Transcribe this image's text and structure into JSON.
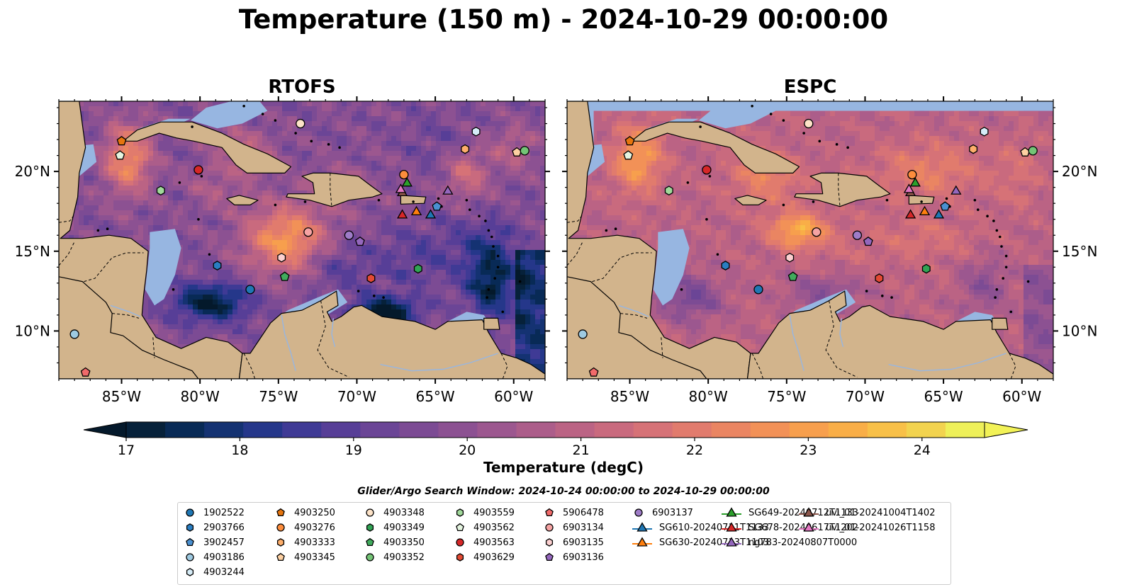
{
  "title": "Temperature (150 m) - 2024-10-29 00:00:00",
  "panels": [
    {
      "title": "RTOFS",
      "variant": "rtofs"
    },
    {
      "title": "ESPC",
      "variant": "espc"
    }
  ],
  "axes": {
    "lon_ticks": [
      "85°W",
      "80°W",
      "75°W",
      "70°W",
      "65°W",
      "60°W"
    ],
    "lat_ticks": [
      "20°N",
      "15°N",
      "10°N"
    ]
  },
  "colorbar": {
    "label": "Temperature (degC)",
    "ticks": [
      "17",
      "18",
      "19",
      "20",
      "21",
      "22",
      "23",
      "24"
    ],
    "colors": [
      "#06213a",
      "#082a56",
      "#143272",
      "#25378a",
      "#3f3a95",
      "#573e97",
      "#6b4596",
      "#7c4b94",
      "#8c5192",
      "#9c578f",
      "#ac5d8a",
      "#bb6384",
      "#c96a7e",
      "#d67277",
      "#e17b6d",
      "#ea8562",
      "#f29157",
      "#f79f4d",
      "#f9ae47",
      "#f8c048",
      "#f2d34f",
      "#eef059"
    ],
    "under_color": "#04192b",
    "over_color": "#f2f257"
  },
  "search_window": "Glider/Argo Search Window: 2024-10-24 00:00:00 to 2024-10-29 00:00:00",
  "colors": {
    "land": "#d2b48c",
    "shallow_water": "#97b6e1",
    "pacific_deep": "#062034"
  },
  "legend": [
    {
      "label": "1902522",
      "marker": "circle",
      "color": "#1f77b4"
    },
    {
      "label": "2903766",
      "marker": "hexagon",
      "color": "#2a7ec2"
    },
    {
      "label": "3902457",
      "marker": "pentagon",
      "color": "#4a90d0"
    },
    {
      "label": "4903186",
      "marker": "circle",
      "color": "#9ecae1"
    },
    {
      "label": "4903244",
      "marker": "hexagon",
      "color": "#d6ecf7"
    },
    {
      "label": "4903250",
      "marker": "pentagon",
      "color": "#e6750e"
    },
    {
      "label": "4903276",
      "marker": "circle",
      "color": "#fd8d3c"
    },
    {
      "label": "4903333",
      "marker": "hexagon",
      "color": "#fdae6b"
    },
    {
      "label": "4903345",
      "marker": "pentagon",
      "color": "#fdd0a2"
    },
    {
      "label": "4903348",
      "marker": "circle",
      "color": "#fde3c8"
    },
    {
      "label": "4903349",
      "marker": "hexagon",
      "color": "#31a354"
    },
    {
      "label": "4903350",
      "marker": "pentagon",
      "color": "#41ab5d"
    },
    {
      "label": "4903352",
      "marker": "circle",
      "color": "#74c476"
    },
    {
      "label": "4903559",
      "marker": "hexagon",
      "color": "#a1d99b"
    },
    {
      "label": "4903562",
      "marker": "pentagon",
      "color": "#e5f5e0"
    },
    {
      "label": "4903563",
      "marker": "circle",
      "color": "#d62728"
    },
    {
      "label": "4903629",
      "marker": "hexagon",
      "color": "#e34a33"
    },
    {
      "label": "5906478",
      "marker": "pentagon",
      "color": "#f16a6a"
    },
    {
      "label": "6903134",
      "marker": "circle",
      "color": "#f5a3a3"
    },
    {
      "label": "6903135",
      "marker": "hexagon",
      "color": "#fcd0d0"
    },
    {
      "label": "6903136",
      "marker": "pentagon",
      "color": "#9467bd"
    },
    {
      "label": "6903137",
      "marker": "circle",
      "color": "#9e7cc7"
    },
    {
      "label": "SG610-20240711T1133",
      "marker": "triangle",
      "color": "#1f77b4"
    },
    {
      "label": "SG630-20240713T1103",
      "marker": "triangle",
      "color": "#ff7f0e"
    },
    {
      "label": "SG649-20240712T1133",
      "marker": "triangle",
      "color": "#2ca02c"
    },
    {
      "label": "SG678-20240617T1202",
      "marker": "triangle",
      "color": "#d62728"
    },
    {
      "label": "ng783-20240807T0000",
      "marker": "triangle",
      "color": "#9467bd"
    },
    {
      "label": "uvi_01-20241004T1402",
      "marker": "triangle",
      "color": "#8c564b"
    },
    {
      "label": "uvi_01-20241026T1158",
      "marker": "triangle",
      "color": "#e377c2"
    }
  ],
  "observations": [
    {
      "id": "1902522",
      "lon": -76.8,
      "lat": 12.6
    },
    {
      "id": "2903766",
      "lon": -78.9,
      "lat": 14.1
    },
    {
      "id": "3902457",
      "lon": -64.9,
      "lat": 17.8
    },
    {
      "id": "4903186",
      "lon": -88.0,
      "lat": 9.8
    },
    {
      "id": "4903244",
      "lon": -62.4,
      "lat": 22.5
    },
    {
      "id": "4903250",
      "lon": -85.0,
      "lat": 21.9
    },
    {
      "id": "4903276",
      "lon": -67.0,
      "lat": 19.8
    },
    {
      "id": "4903333",
      "lon": -63.1,
      "lat": 21.4
    },
    {
      "id": "4903345",
      "lon": -59.8,
      "lat": 21.2
    },
    {
      "id": "4903348",
      "lon": -73.6,
      "lat": 23.0
    },
    {
      "id": "4903349",
      "lon": -66.1,
      "lat": 13.9
    },
    {
      "id": "4903350",
      "lon": -74.6,
      "lat": 13.4
    },
    {
      "id": "4903352",
      "lon": -59.3,
      "lat": 21.3
    },
    {
      "id": "4903559",
      "lon": -82.5,
      "lat": 18.8
    },
    {
      "id": "4903562",
      "lon": -85.1,
      "lat": 21.0
    },
    {
      "id": "4903563",
      "lon": -80.1,
      "lat": 20.1
    },
    {
      "id": "4903629",
      "lon": -69.1,
      "lat": 13.3
    },
    {
      "id": "5906478",
      "lon": -87.3,
      "lat": 7.4
    },
    {
      "id": "6903134",
      "lon": -73.1,
      "lat": 16.2
    },
    {
      "id": "6903135",
      "lon": -74.8,
      "lat": 14.6
    },
    {
      "id": "6903136",
      "lon": -69.8,
      "lat": 15.6
    },
    {
      "id": "6903137",
      "lon": -70.5,
      "lat": 16.0
    },
    {
      "id": "SG610-20240711T1133",
      "lon": -65.3,
      "lat": 17.3
    },
    {
      "id": "SG630-20240713T1103",
      "lon": -66.2,
      "lat": 17.5
    },
    {
      "id": "SG649-20240712T1133",
      "lon": -66.8,
      "lat": 19.3
    },
    {
      "id": "SG678-20240617T1202",
      "lon": -67.1,
      "lat": 17.3
    },
    {
      "id": "ng783-20240807T0000",
      "lon": -64.2,
      "lat": 18.8
    },
    {
      "id": "uvi_01-20241004T1402",
      "lon": -67.1,
      "lat": 18.7
    },
    {
      "id": "uvi_01-20241026T1158",
      "lon": -67.2,
      "lat": 18.9
    }
  ]
}
